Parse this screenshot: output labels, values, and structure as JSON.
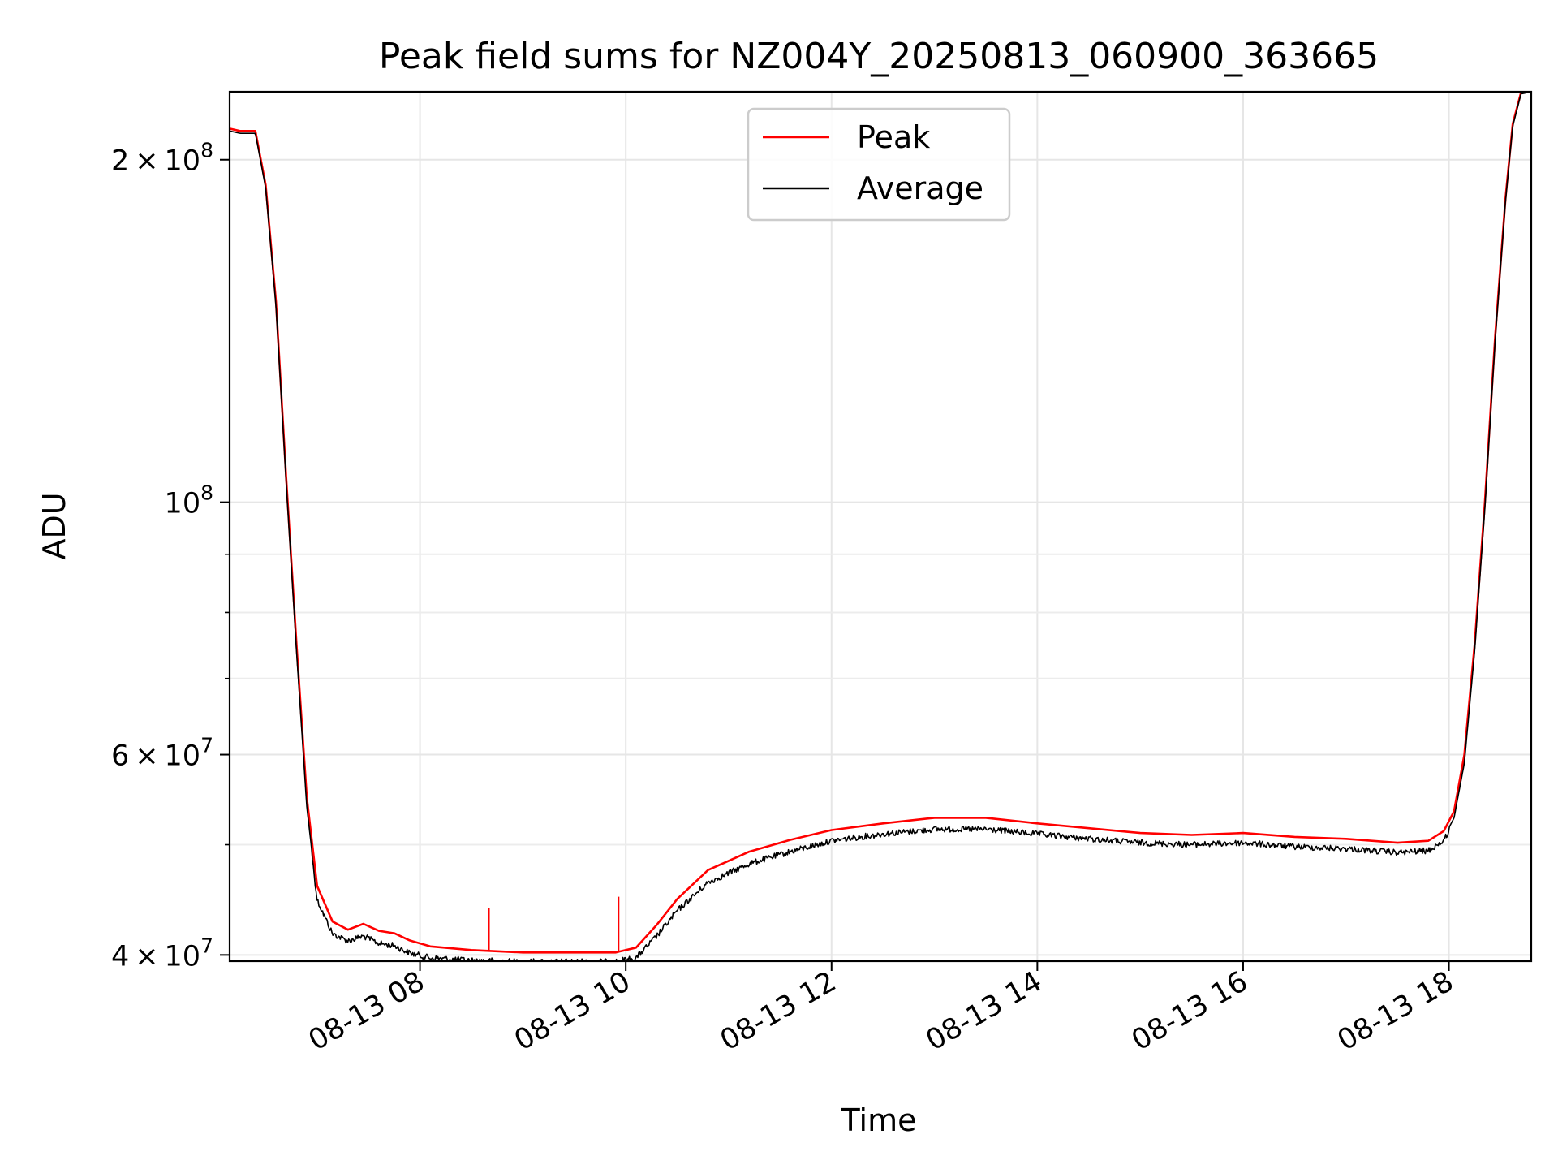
{
  "chart_data": {
    "type": "line",
    "title": "Peak field sums for NZ004Y_20250813_060900_363665",
    "xlabel": "Time",
    "ylabel": "ADU",
    "x_unit": "hours (2025-08-13)",
    "xlim": [
      6.15,
      18.8
    ],
    "ylim": [
      39500000,
      229500000
    ],
    "yscale": "log",
    "grid": true,
    "legend_position": "upper-center",
    "xticks": [
      {
        "value": 8,
        "label": "08-13 08"
      },
      {
        "value": 10,
        "label": "08-13 10"
      },
      {
        "value": 12,
        "label": "08-13 12"
      },
      {
        "value": 14,
        "label": "08-13 14"
      },
      {
        "value": 16,
        "label": "08-13 16"
      },
      {
        "value": 18,
        "label": "08-13 18"
      }
    ],
    "yticks_major": [
      {
        "value": 40000000,
        "mantissa": "4",
        "exp": "7"
      },
      {
        "value": 60000000,
        "mantissa": "6",
        "exp": "7"
      },
      {
        "value": 100000000,
        "mantissa": "",
        "exp": "8"
      },
      {
        "value": 200000000,
        "mantissa": "2",
        "exp": "8"
      }
    ],
    "yticks_minor": [
      50000000,
      70000000,
      80000000,
      90000000
    ],
    "series": [
      {
        "name": "Peak",
        "color": "#ff0000",
        "points": [
          [
            6.15,
            213000000
          ],
          [
            6.25,
            212000000
          ],
          [
            6.4,
            212000000
          ],
          [
            6.5,
            190000000
          ],
          [
            6.6,
            150000000
          ],
          [
            6.7,
            105000000
          ],
          [
            6.8,
            75000000
          ],
          [
            6.9,
            55000000
          ],
          [
            7.0,
            46000000
          ],
          [
            7.15,
            42800000
          ],
          [
            7.3,
            42100000
          ],
          [
            7.45,
            42600000
          ],
          [
            7.6,
            42000000
          ],
          [
            7.75,
            41800000
          ],
          [
            7.9,
            41200000
          ],
          [
            8.1,
            40700000
          ],
          [
            8.5,
            40400000
          ],
          [
            9.0,
            40200000
          ],
          [
            9.5,
            40200000
          ],
          [
            9.9,
            40200000
          ],
          [
            10.1,
            40600000
          ],
          [
            10.3,
            42500000
          ],
          [
            10.5,
            44800000
          ],
          [
            10.8,
            47500000
          ],
          [
            11.2,
            49300000
          ],
          [
            11.6,
            50500000
          ],
          [
            12.0,
            51500000
          ],
          [
            12.5,
            52200000
          ],
          [
            13.0,
            52800000
          ],
          [
            13.5,
            52800000
          ],
          [
            14.0,
            52200000
          ],
          [
            14.5,
            51700000
          ],
          [
            15.0,
            51200000
          ],
          [
            15.5,
            51000000
          ],
          [
            16.0,
            51200000
          ],
          [
            16.5,
            50800000
          ],
          [
            17.0,
            50600000
          ],
          [
            17.5,
            50200000
          ],
          [
            17.8,
            50400000
          ],
          [
            17.95,
            51400000
          ],
          [
            18.05,
            53500000
          ],
          [
            18.15,
            60000000
          ],
          [
            18.25,
            75000000
          ],
          [
            18.35,
            100000000
          ],
          [
            18.45,
            140000000
          ],
          [
            18.55,
            185000000
          ],
          [
            18.62,
            215000000
          ],
          [
            18.7,
            229000000
          ],
          [
            18.8,
            229500000
          ]
        ],
        "spikes": [
          [
            8.67,
            44000000
          ],
          [
            9.93,
            45000000
          ]
        ]
      },
      {
        "name": "Average",
        "color": "#000000",
        "points": [
          [
            6.15,
            212000000
          ],
          [
            6.25,
            211000000
          ],
          [
            6.4,
            211000000
          ],
          [
            6.5,
            189000000
          ],
          [
            6.6,
            149000000
          ],
          [
            6.7,
            104000000
          ],
          [
            6.8,
            74000000
          ],
          [
            6.9,
            54000000
          ],
          [
            7.0,
            45000000
          ],
          [
            7.15,
            42000000
          ],
          [
            7.3,
            41400000
          ],
          [
            7.45,
            41800000
          ],
          [
            7.6,
            41200000
          ],
          [
            7.75,
            41000000
          ],
          [
            7.9,
            40400000
          ],
          [
            8.1,
            40000000
          ],
          [
            8.5,
            39800000
          ],
          [
            9.0,
            39700000
          ],
          [
            9.5,
            39700000
          ],
          [
            9.9,
            39700000
          ],
          [
            10.1,
            40000000
          ],
          [
            10.3,
            41800000
          ],
          [
            10.5,
            44000000
          ],
          [
            10.8,
            46600000
          ],
          [
            11.2,
            48400000
          ],
          [
            11.6,
            49600000
          ],
          [
            12.0,
            50700000
          ],
          [
            12.5,
            51400000
          ],
          [
            13.0,
            51900000
          ],
          [
            13.5,
            51900000
          ],
          [
            14.0,
            51400000
          ],
          [
            14.5,
            50900000
          ],
          [
            15.0,
            50500000
          ],
          [
            15.5,
            50300000
          ],
          [
            16.0,
            50500000
          ],
          [
            16.5,
            50100000
          ],
          [
            17.0,
            49900000
          ],
          [
            17.5,
            49500000
          ],
          [
            17.8,
            49700000
          ],
          [
            17.95,
            50700000
          ],
          [
            18.05,
            52800000
          ],
          [
            18.15,
            59000000
          ],
          [
            18.25,
            74000000
          ],
          [
            18.35,
            99000000
          ],
          [
            18.45,
            139000000
          ],
          [
            18.55,
            184000000
          ],
          [
            18.62,
            214000000
          ],
          [
            18.7,
            228500000
          ],
          [
            18.8,
            229500000
          ]
        ],
        "noise_fraction": 0.012
      }
    ]
  }
}
